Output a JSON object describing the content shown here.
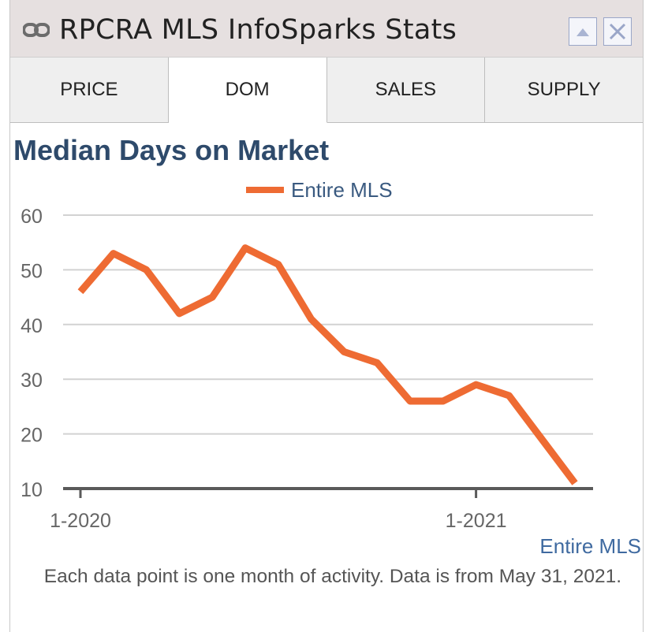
{
  "header": {
    "title": "RPCRA MLS InfoSparks Stats",
    "link_icon": "link-icon",
    "buttons": [
      "collapse-button",
      "close-button"
    ]
  },
  "tabs": [
    {
      "label": "PRICE",
      "active": false
    },
    {
      "label": "DOM",
      "active": true
    },
    {
      "label": "SALES",
      "active": false
    },
    {
      "label": "SUPPLY",
      "active": false
    }
  ],
  "colors": {
    "series": "#ee6b33",
    "title": "#2e4a6b",
    "legend_text": "#3a5a80",
    "tab_bg": "#efefef",
    "titlebar_bg": "#e6e0e0"
  },
  "chart_data": {
    "type": "line",
    "title": "Median Days on Market",
    "legend": {
      "entries": [
        "Entire MLS"
      ],
      "placement": "top"
    },
    "series": [
      {
        "name": "Entire MLS",
        "values": [
          46,
          53,
          50,
          42,
          45,
          54,
          51,
          41,
          35,
          33,
          26,
          26,
          29,
          27,
          19,
          11
        ]
      }
    ],
    "x_labels": [
      {
        "label": "1-2020",
        "index": 0
      },
      {
        "label": "1-2021",
        "index": 12
      }
    ],
    "ylim": [
      10,
      60
    ],
    "yticks": [
      60,
      50,
      40,
      30,
      20,
      10
    ],
    "grid": true,
    "series_label": "Entire MLS"
  },
  "footnote": "Each data point is one month of activity. Data is from May 31, 2021."
}
